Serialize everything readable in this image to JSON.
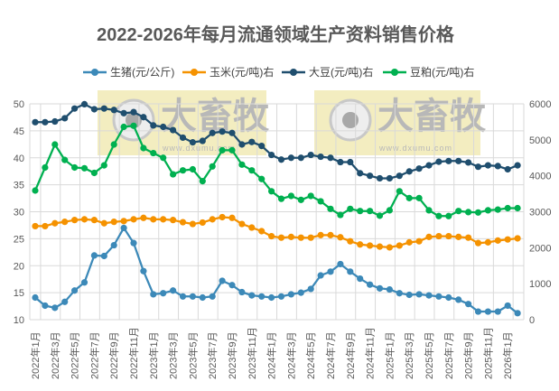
{
  "chart_data": {
    "type": "line",
    "title": "2022-2026年每月流通领域生产资料销售价格",
    "legend_position": "top",
    "grid": true,
    "x": [
      "2022年1月",
      "2022年2月",
      "2022年3月",
      "2022年4月",
      "2022年5月",
      "2022年6月",
      "2022年7月",
      "2022年8月",
      "2022年9月",
      "2022年10月",
      "2022年11月",
      "2022年12月",
      "2023年1月",
      "2023年2月",
      "2023年3月",
      "2023年4月",
      "2023年5月",
      "2023年6月",
      "2023年7月",
      "2023年8月",
      "2023年9月",
      "2023年10月",
      "2023年11月",
      "2023年12月",
      "2024年1月",
      "2024年2月",
      "2024年3月",
      "2024年4月",
      "2024年5月",
      "2024年6月",
      "2024年7月",
      "2024年8月",
      "2024年9月",
      "2024年10月",
      "2024年11月",
      "2024年12月",
      "2025年1月",
      "2025年2月",
      "2025年3月",
      "2025年4月",
      "2025年5月",
      "2025年6月",
      "2025年7月",
      "2025年8月",
      "2025年9月",
      "2025年10月",
      "2025年11月",
      "2025年12月",
      "2026年1月",
      "2026年2月"
    ],
    "x_tick_labels": [
      "2022年1月",
      "2022年3月",
      "2022年5月",
      "2022年7月",
      "2022年9月",
      "2022年11月",
      "2023年1月",
      "2023年3月",
      "2023年5月",
      "2023年7月",
      "2023年9月",
      "2023年11月",
      "2024年1月",
      "2024年3月",
      "2024年5月",
      "2024年7月",
      "2024年9月",
      "2024年11月",
      "2025年1月",
      "2025年3月",
      "2025年5月",
      "2025年7月",
      "2025年9月",
      "2025年11月",
      "2026年1月"
    ],
    "y_left": {
      "range": [
        10,
        50
      ],
      "ticks": [
        10,
        15,
        20,
        25,
        30,
        35,
        40,
        45,
        50
      ]
    },
    "y_right": {
      "range": [
        0,
        6000
      ],
      "ticks": [
        0,
        1000,
        2000,
        3000,
        4000,
        5000,
        6000
      ]
    },
    "series": [
      {
        "name": "生猪(元/公斤)",
        "axis": "left",
        "color": "#3C89B8",
        "values": [
          14.1,
          12.6,
          12.2,
          13.3,
          15.4,
          16.9,
          21.9,
          21.8,
          23.8,
          27.0,
          24.2,
          19.0,
          14.7,
          14.9,
          15.4,
          14.3,
          14.3,
          14.1,
          14.3,
          17.2,
          16.4,
          15.1,
          14.5,
          14.3,
          14.1,
          14.3,
          14.7,
          15.0,
          15.7,
          18.2,
          18.9,
          20.3,
          18.9,
          17.6,
          16.5,
          15.8,
          15.6,
          14.9,
          14.6,
          14.7,
          14.5,
          14.3,
          14.1,
          13.7,
          12.9,
          11.5,
          11.5,
          11.5,
          12.6,
          11.2
        ]
      },
      {
        "name": "玉米(元/吨)右",
        "axis": "right",
        "color": "#F59200",
        "values": [
          2600,
          2600,
          2680,
          2720,
          2770,
          2790,
          2770,
          2680,
          2720,
          2740,
          2790,
          2830,
          2790,
          2790,
          2770,
          2710,
          2660,
          2700,
          2790,
          2850,
          2830,
          2660,
          2560,
          2460,
          2320,
          2280,
          2300,
          2280,
          2280,
          2350,
          2350,
          2290,
          2180,
          2090,
          2060,
          2030,
          2010,
          2060,
          2150,
          2180,
          2300,
          2320,
          2320,
          2300,
          2280,
          2130,
          2150,
          2200,
          2230,
          2260
        ]
      },
      {
        "name": "大豆(元/吨)右",
        "axis": "right",
        "color": "#1F4E6E",
        "values": [
          5490,
          5490,
          5510,
          5600,
          5870,
          5990,
          5850,
          5870,
          5830,
          5740,
          5770,
          5630,
          5400,
          5360,
          5270,
          5060,
          4930,
          4970,
          5190,
          5230,
          5190,
          4870,
          4940,
          4830,
          4580,
          4450,
          4500,
          4500,
          4580,
          4530,
          4500,
          4380,
          4380,
          4070,
          4000,
          3930,
          3930,
          4000,
          4120,
          4200,
          4290,
          4390,
          4410,
          4410,
          4370,
          4250,
          4290,
          4270,
          4180,
          4290
        ]
      },
      {
        "name": "豆粕(元/吨)右",
        "axis": "right",
        "color": "#00B050",
        "values": [
          3590,
          4230,
          4870,
          4440,
          4230,
          4210,
          4080,
          4290,
          4870,
          5360,
          5390,
          4770,
          4630,
          4500,
          4040,
          4150,
          4180,
          3850,
          4260,
          4710,
          4710,
          4310,
          4150,
          3910,
          3570,
          3360,
          3440,
          3330,
          3440,
          3290,
          3080,
          2910,
          3080,
          3020,
          3020,
          2890,
          3040,
          3570,
          3380,
          3380,
          3040,
          2880,
          2880,
          3020,
          2990,
          2980,
          3040,
          3060,
          3100,
          3100
        ]
      }
    ]
  },
  "watermark": {
    "brand": "大畜牧",
    "url": "www.dxumu.com",
    "color": "#F3EDC0"
  }
}
